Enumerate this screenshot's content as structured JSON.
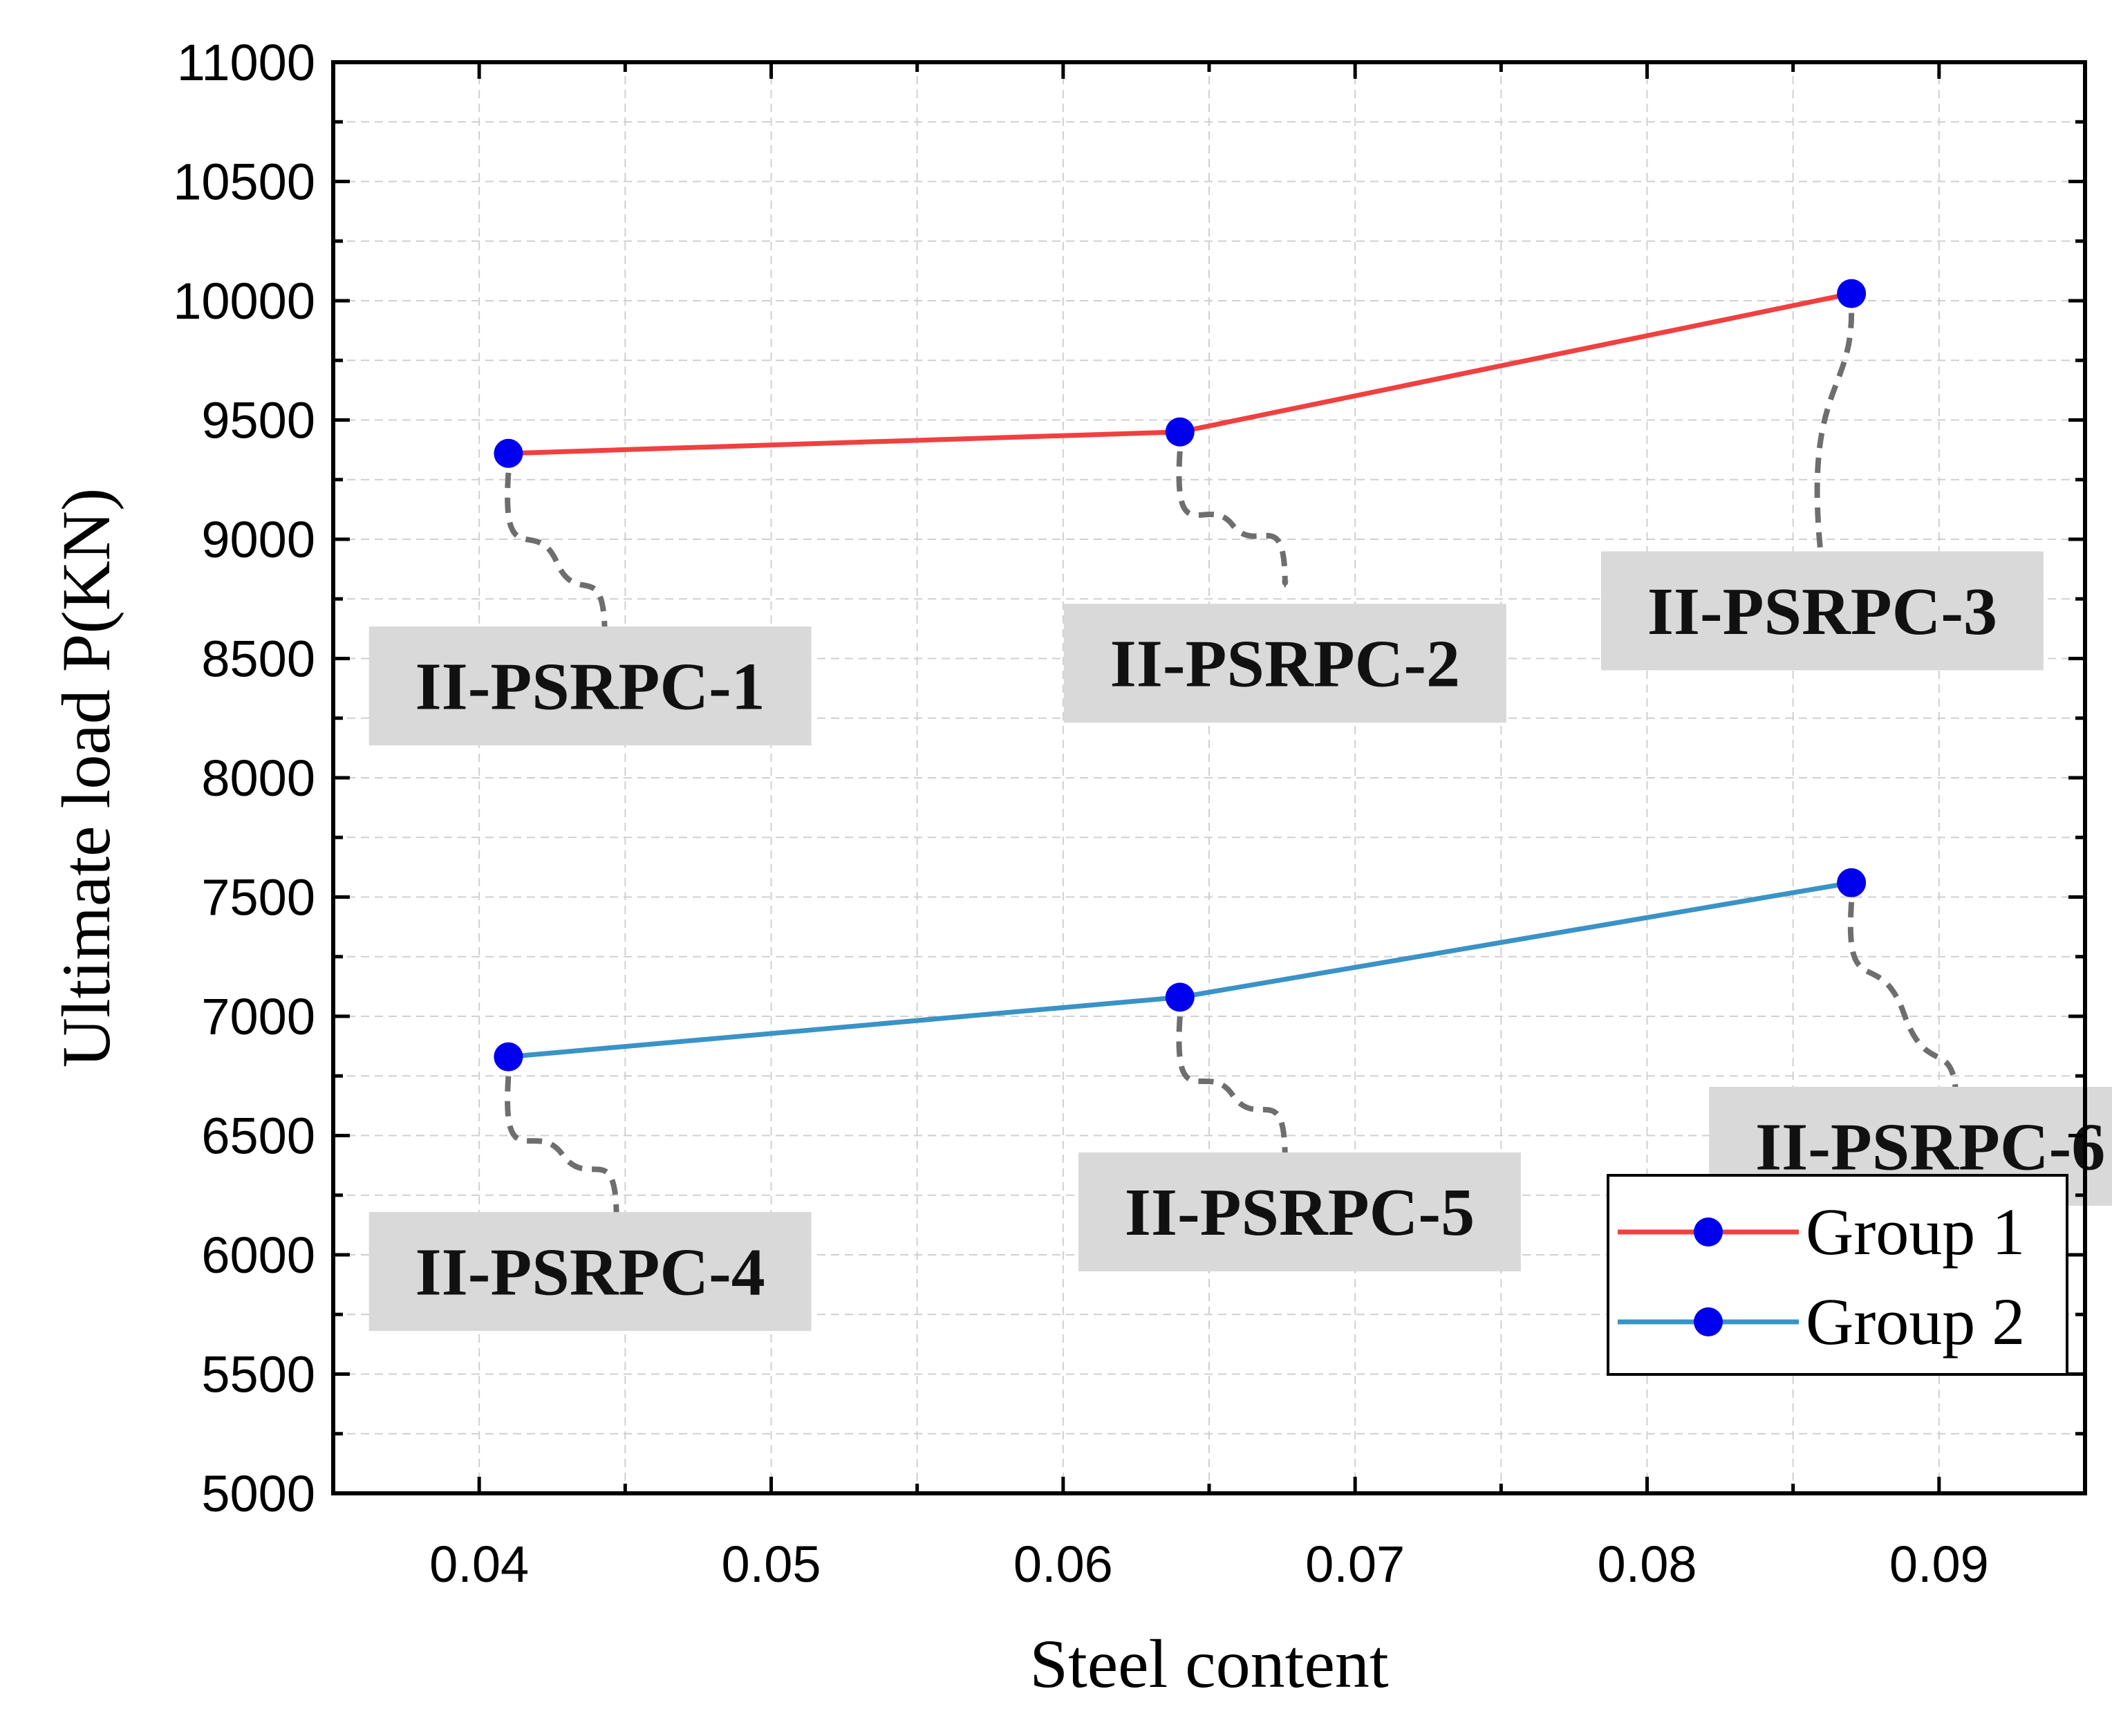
{
  "chart_data": {
    "type": "line",
    "title": "",
    "xlabel": "Steel content",
    "ylabel": "Ultimate load P(KN)",
    "xlim": [
      0.035,
      0.095
    ],
    "ylim": [
      5000,
      11000
    ],
    "xticks": [
      "0.04",
      "0.05",
      "0.06",
      "0.07",
      "0.08",
      "0.09"
    ],
    "yticks": [
      "5000",
      "5500",
      "6000",
      "6500",
      "7000",
      "7500",
      "8000",
      "8500",
      "9000",
      "9500",
      "10000",
      "10500",
      "11000"
    ],
    "grid": true,
    "legend_position": "bottom-right",
    "series": [
      {
        "name": "Group 1",
        "color": "#f04040",
        "marker_color": "#0000ee",
        "x": [
          0.041,
          0.064,
          0.087
        ],
        "y": [
          9360,
          9450,
          10030
        ],
        "labels": [
          "II-PSRPC-1",
          "II-PSRPC-2",
          "II-PSRPC-3"
        ]
      },
      {
        "name": "Group 2",
        "color": "#3a93c6",
        "marker_color": "#0000ee",
        "x": [
          0.041,
          0.064,
          0.087
        ],
        "y": [
          6830,
          7080,
          7560
        ],
        "labels": [
          "II-PSRPC-4",
          "II-PSRPC-5",
          "II-PSRPC-6"
        ]
      }
    ]
  }
}
